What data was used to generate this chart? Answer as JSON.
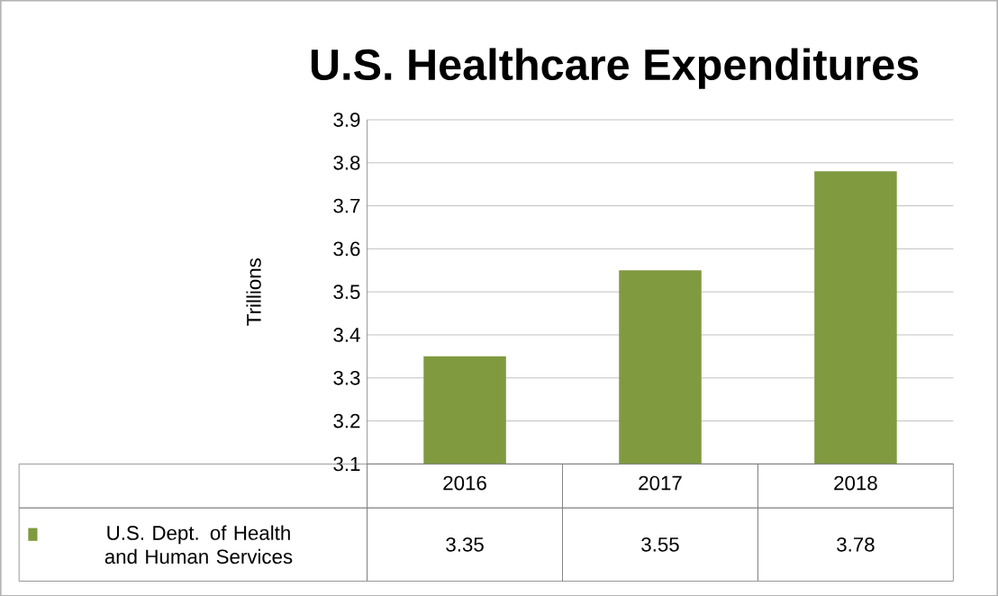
{
  "chart_data": {
    "type": "bar",
    "title": "U.S. Healthcare Expenditures",
    "ylabel": "Trillions",
    "categories": [
      "2016",
      "2017",
      "2018"
    ],
    "series": [
      {
        "name": "U.S. Dept. of Health and Human Services",
        "color": "#7f9a3f",
        "values": [
          3.35,
          3.55,
          3.78
        ]
      }
    ],
    "ylim": [
      3.1,
      3.9
    ],
    "yticks": [
      3.1,
      3.2,
      3.3,
      3.4,
      3.5,
      3.6,
      3.7,
      3.8,
      3.9
    ],
    "grid": "y",
    "legend": "bottom",
    "data_labels": true
  }
}
